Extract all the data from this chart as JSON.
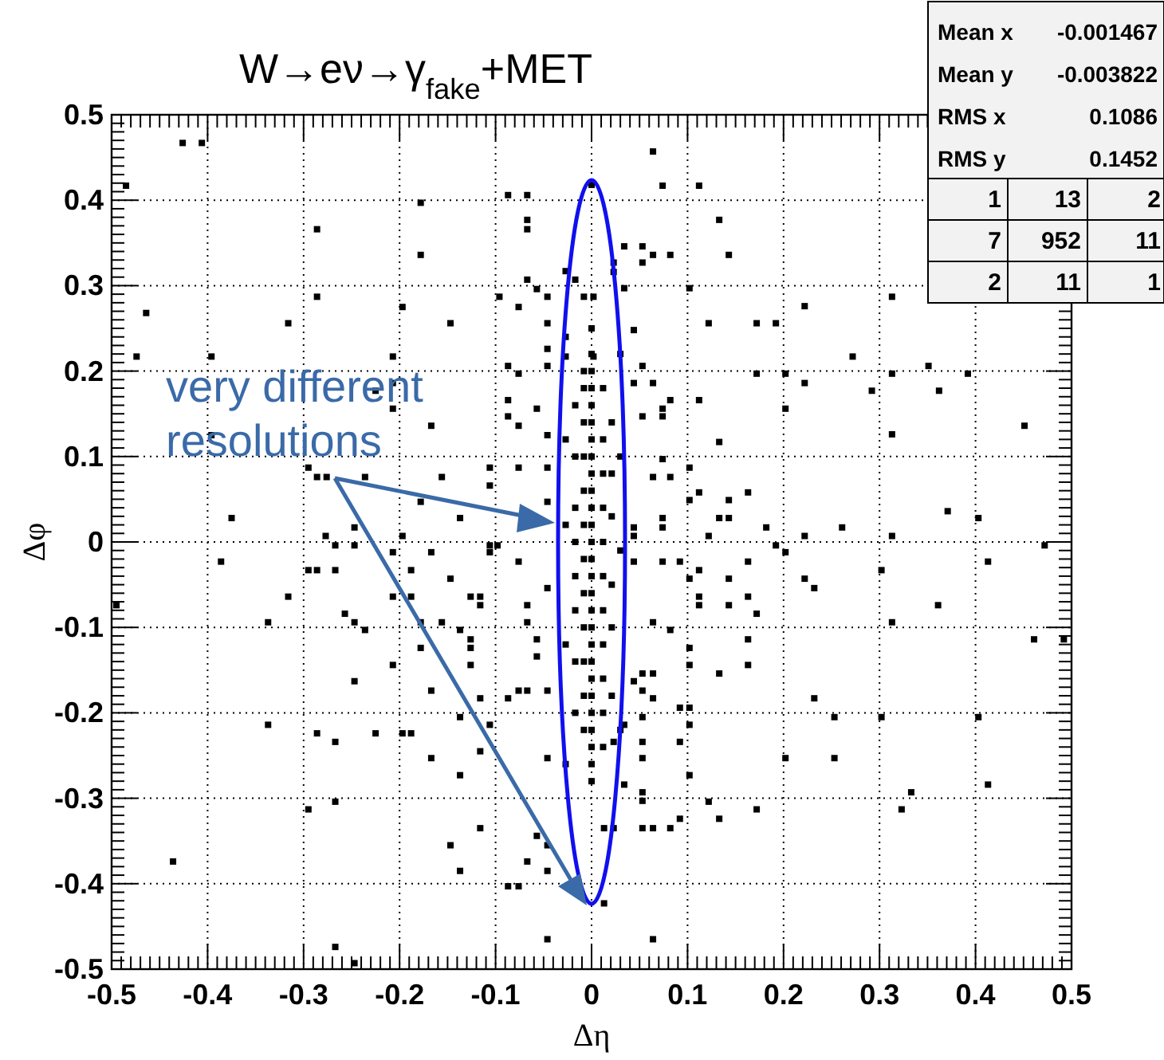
{
  "chart_data": {
    "type": "scatter",
    "title": "W→eν→γ$_{fake}$+MET",
    "xlabel": "Δη",
    "ylabel": "Δφ",
    "xlim": [
      -0.5,
      0.5
    ],
    "ylim": [
      -0.5,
      0.5
    ],
    "xticks": [
      -0.5,
      -0.4,
      -0.3,
      -0.2,
      -0.1,
      0,
      0.1,
      0.2,
      0.3,
      0.4,
      0.5
    ],
    "yticks": [
      -0.5,
      -0.4,
      -0.3,
      -0.2,
      -0.1,
      0,
      0.1,
      0.2,
      0.3,
      0.4,
      0.5
    ],
    "grid": true,
    "marker": "square",
    "annotations": [
      "very different resolutions",
      "Mean x",
      "-0.001467",
      "Mean y",
      "-0.003822",
      "RMS x",
      "0.1086",
      "RMS y",
      "0.1452",
      "1",
      "13",
      "2",
      "7",
      "952",
      "11",
      "2",
      "11",
      "1"
    ],
    "series": [
      {
        "color": "#000000",
        "x": [
          -0.485,
          -0.426,
          -0.406,
          -0.286,
          -0.286,
          -0.464,
          -0.474,
          -0.396,
          -0.316,
          -0.178,
          -0.178,
          -0.197,
          -0.147,
          -0.207,
          -0.207,
          -0.225,
          -0.207,
          -0.167,
          -0.087,
          -0.067,
          -0.067,
          -0.067,
          -0.067,
          -0.057,
          -0.046,
          -0.096,
          -0.076,
          -0.046,
          -0.087,
          -0.076,
          -0.046,
          -0.046,
          -0.087,
          -0.087,
          -0.076,
          -0.057,
          -0.046,
          -0.396,
          -0.295,
          -0.286,
          -0.276,
          -0.236,
          -0.156,
          -0.106,
          -0.106,
          -0.076,
          -0.046,
          -0.178,
          -0.137,
          -0.375,
          -0.046,
          -0.017,
          -0.027,
          -0.008,
          -0.027,
          0.002,
          0.002,
          0.0,
          0.064,
          0.074,
          0.112,
          0.133,
          0.034,
          0.053,
          0.064,
          0.082,
          0.053,
          0.143,
          0.023,
          0.023,
          0.034,
          0.102,
          0.313,
          0.222,
          0.122,
          0.172,
          0.192,
          0.044,
          0.272,
          0.351,
          0.392,
          0.313,
          0.202,
          0.172,
          0.222,
          0.064,
          0.044,
          0.053,
          0.292,
          0.362,
          0.082,
          0.112,
          0.074,
          0.053,
          0.074,
          0.202,
          0.451,
          0.313,
          0.133,
          0.074,
          0.064,
          0.082,
          0.102,
          0.112,
          0.102,
          0.143,
          0.163,
          0.074,
          0.133,
          0.143,
          0.371,
          0.403,
          0.074,
          0.044,
          0.044,
          0.122,
          0.182,
          0.222,
          0.261,
          0.313,
          0.192,
          0.202,
          0.472,
          0.044,
          0.074,
          0.092,
          0.163,
          0.302,
          0.413,
          0.102,
          0.112,
          0.143,
          0.222,
          0.232,
          0.112,
          0.163,
          0.112,
          0.143,
          0.172,
          0.361,
          0.064,
          0.082,
          0.313,
          0.163,
          0.461,
          0.492,
          0.102,
          0.102,
          0.163,
          0.133,
          0.064,
          0.053,
          0.044,
          0.053,
          0.064,
          0.232,
          0.092,
          0.102,
          0.102,
          0.053,
          0.034,
          0.253,
          0.302,
          0.403,
          0.053,
          0.092,
          0.023,
          0.053,
          0.102,
          0.202,
          0.253,
          0.034,
          0.053,
          0.053,
          0.413,
          0.122,
          0.333,
          0.323,
          0.172,
          0.133,
          0.092,
          0.013,
          0.023,
          0.053,
          0.064,
          0.082,
          0.013,
          0.064,
          -0.277,
          -0.247,
          -0.247,
          -0.267,
          -0.197,
          -0.207,
          -0.167,
          -0.106,
          -0.098,
          -0.106,
          -0.386,
          -0.295,
          -0.286,
          -0.267,
          -0.188,
          -0.147,
          -0.076,
          -0.495,
          -0.316,
          -0.207,
          -0.188,
          -0.126,
          -0.116,
          -0.116,
          -0.067,
          -0.046,
          -0.257,
          -0.337,
          -0.247,
          -0.236,
          -0.178,
          -0.156,
          -0.137,
          -0.067,
          -0.178,
          -0.126,
          -0.126,
          -0.057,
          -0.057,
          -0.207,
          -0.126,
          -0.247,
          -0.167,
          -0.116,
          -0.087,
          -0.076,
          -0.067,
          -0.046,
          -0.337,
          -0.286,
          -0.267,
          -0.225,
          -0.197,
          -0.188,
          -0.137,
          -0.106,
          -0.167,
          -0.137,
          -0.116,
          -0.046,
          -0.267,
          -0.295,
          -0.116,
          -0.147,
          -0.137,
          -0.057,
          -0.046,
          -0.067,
          -0.046,
          -0.436,
          -0.087,
          -0.076,
          -0.046,
          -0.267,
          -0.247,
          0,
          0,
          0,
          0,
          0,
          0,
          0,
          0,
          0,
          0,
          0,
          0,
          0,
          0,
          0,
          0,
          0,
          0,
          0,
          0,
          0,
          0,
          0,
          0,
          0,
          0,
          0,
          -0.008,
          -0.008,
          -0.008,
          -0.008,
          -0.008,
          -0.008,
          -0.008,
          -0.008,
          -0.008,
          -0.008,
          -0.008,
          -0.008,
          0.012,
          0.012,
          0.012,
          0.012,
          0.012,
          0.012,
          0.012,
          0.012,
          0.012,
          0.012,
          0.012,
          -0.017,
          -0.017,
          -0.017,
          -0.017,
          -0.017,
          -0.017,
          -0.017,
          -0.017,
          0.021,
          0.021,
          0.021,
          0.021,
          0.021,
          0.021,
          -0.027,
          -0.027,
          -0.027,
          -0.027,
          -0.027,
          0.03,
          0.03,
          0.03,
          0.03
        ],
        "values": [
          0.417,
          0.467,
          0.467,
          0.366,
          0.287,
          0.268,
          0.217,
          0.217,
          0.256,
          0.397,
          0.336,
          0.275,
          0.256,
          0.217,
          0.186,
          0.177,
          0.156,
          0.136,
          0.406,
          0.406,
          0.377,
          0.366,
          0.307,
          0.296,
          0.287,
          0.287,
          0.275,
          0.256,
          0.206,
          0.197,
          0.206,
          0.226,
          0.166,
          0.147,
          0.136,
          0.156,
          0.125,
          0.125,
          0.087,
          0.076,
          0.076,
          0.076,
          0.076,
          0.087,
          0.066,
          0.087,
          0.087,
          0.047,
          0.028,
          0.028,
          0.047,
          0.307,
          0.317,
          0.287,
          0.217,
          0.217,
          0.287,
          0.418,
          0.457,
          0.417,
          0.417,
          0.377,
          0.346,
          0.346,
          0.336,
          0.336,
          0.327,
          0.336,
          0.327,
          0.316,
          0.297,
          0.297,
          0.287,
          0.276,
          0.256,
          0.256,
          0.256,
          0.248,
          0.217,
          0.206,
          0.197,
          0.197,
          0.197,
          0.197,
          0.186,
          0.186,
          0.186,
          0.206,
          0.177,
          0.177,
          0.166,
          0.166,
          0.156,
          0.147,
          0.147,
          0.156,
          0.136,
          0.126,
          0.117,
          0.097,
          0.076,
          0.076,
          0.087,
          0.058,
          0.049,
          0.049,
          0.058,
          0.028,
          0.028,
          0.028,
          0.036,
          0.028,
          0.017,
          0.017,
          0.007,
          0.007,
          0.017,
          0.007,
          0.017,
          0.007,
          -0.004,
          -0.012,
          -0.004,
          -0.023,
          -0.023,
          -0.023,
          -0.023,
          -0.033,
          -0.023,
          -0.043,
          -0.033,
          -0.043,
          -0.043,
          -0.054,
          -0.064,
          -0.064,
          -0.074,
          -0.074,
          -0.084,
          -0.074,
          -0.094,
          -0.103,
          -0.094,
          -0.114,
          -0.114,
          -0.114,
          -0.124,
          -0.144,
          -0.144,
          -0.154,
          -0.154,
          -0.154,
          -0.163,
          -0.174,
          -0.183,
          -0.183,
          -0.194,
          -0.194,
          -0.214,
          -0.205,
          -0.214,
          -0.205,
          -0.205,
          -0.205,
          -0.234,
          -0.234,
          -0.234,
          -0.253,
          -0.273,
          -0.253,
          -0.253,
          -0.284,
          -0.293,
          -0.303,
          -0.284,
          -0.304,
          -0.293,
          -0.313,
          -0.313,
          -0.324,
          -0.324,
          -0.335,
          -0.335,
          -0.335,
          -0.335,
          -0.335,
          -0.423,
          -0.465,
          0.007,
          0.017,
          -0.004,
          -0.004,
          0.007,
          -0.012,
          -0.012,
          -0.004,
          -0.004,
          -0.012,
          -0.023,
          -0.033,
          -0.033,
          -0.033,
          -0.033,
          -0.043,
          -0.023,
          -0.074,
          -0.064,
          -0.064,
          -0.064,
          -0.064,
          -0.064,
          -0.074,
          -0.074,
          -0.054,
          -0.084,
          -0.094,
          -0.094,
          -0.103,
          -0.094,
          -0.094,
          -0.103,
          -0.094,
          -0.124,
          -0.114,
          -0.124,
          -0.114,
          -0.134,
          -0.144,
          -0.144,
          -0.163,
          -0.174,
          -0.183,
          -0.183,
          -0.174,
          -0.174,
          -0.174,
          -0.214,
          -0.224,
          -0.234,
          -0.224,
          -0.224,
          -0.224,
          -0.205,
          -0.214,
          -0.253,
          -0.273,
          -0.245,
          -0.253,
          -0.304,
          -0.313,
          -0.335,
          -0.355,
          -0.385,
          -0.344,
          -0.355,
          -0.374,
          -0.385,
          -0.374,
          -0.403,
          -0.403,
          -0.465,
          -0.474,
          -0.493,
          -0.28,
          -0.26,
          -0.24,
          -0.22,
          -0.2,
          -0.18,
          -0.16,
          -0.14,
          -0.12,
          -0.1,
          -0.08,
          -0.06,
          -0.04,
          -0.02,
          0,
          0.02,
          0.04,
          0.06,
          0.08,
          0.1,
          0.12,
          0.14,
          0.16,
          0.18,
          0.2,
          0.22,
          0.25,
          -0.22,
          -0.18,
          -0.14,
          -0.1,
          -0.06,
          -0.02,
          0.02,
          0.06,
          0.1,
          0.14,
          0.18,
          0.2,
          -0.24,
          -0.2,
          -0.16,
          -0.12,
          -0.08,
          -0.04,
          0.0,
          0.04,
          0.08,
          0.12,
          0.18,
          -0.2,
          -0.14,
          -0.08,
          -0.04,
          0,
          0.04,
          0.1,
          0.16,
          -0.18,
          -0.1,
          -0.05,
          0.03,
          0.08,
          0.14,
          -0.26,
          -0.12,
          0.02,
          0.12,
          0.24,
          -0.22,
          -0.01,
          0.1,
          0.22
        ]
      }
    ]
  }
}
